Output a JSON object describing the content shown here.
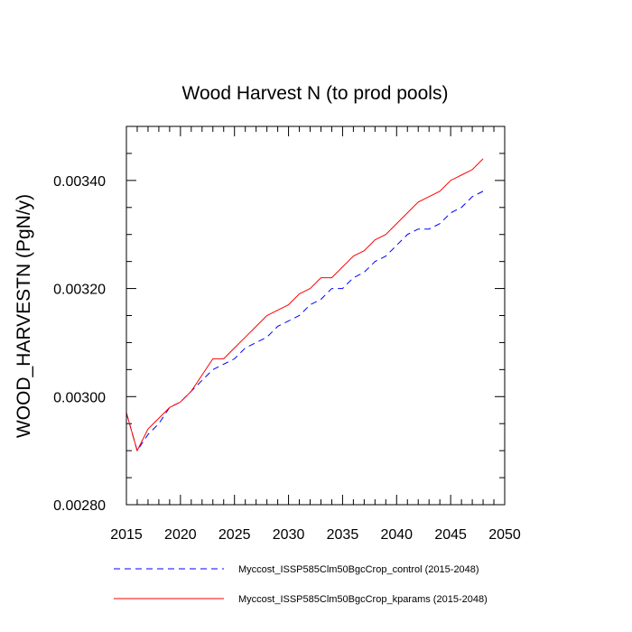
{
  "chart_data": {
    "type": "line",
    "title": "Wood Harvest N (to prod pools)",
    "xlabel": "",
    "ylabel": "WOOD_HARVESTN  (PgN/y)",
    "xlim": [
      2015,
      2050
    ],
    "ylim": [
      0.0028,
      0.0035
    ],
    "xticks": [
      2015,
      2020,
      2025,
      2030,
      2035,
      2040,
      2045,
      2050
    ],
    "xtick_labels": [
      "2015",
      "2020",
      "2025",
      "2030",
      "2035",
      "2040",
      "2045",
      "2050"
    ],
    "yticks": [
      0.0028,
      0.003,
      0.0032,
      0.0034
    ],
    "ytick_labels": [
      "0.00280",
      "0.00300",
      "0.00320",
      "0.00340"
    ],
    "grid": false,
    "legend_position": "bottom",
    "x": [
      2015,
      2016,
      2017,
      2018,
      2019,
      2020,
      2021,
      2022,
      2023,
      2024,
      2025,
      2026,
      2027,
      2028,
      2029,
      2030,
      2031,
      2032,
      2033,
      2034,
      2035,
      2036,
      2037,
      2038,
      2039,
      2040,
      2041,
      2042,
      2043,
      2044,
      2045,
      2046,
      2047,
      2048
    ],
    "series": [
      {
        "name": "Myccost_ISSP585Clm50BgcCrop_control (2015-2048)",
        "color": "#0000ff",
        "dash": "dashed",
        "values": [
          0.00297,
          0.0029,
          0.00293,
          0.00295,
          0.00298,
          0.00299,
          0.00301,
          0.00303,
          0.00305,
          0.00306,
          0.00307,
          0.00309,
          0.0031,
          0.00311,
          0.00313,
          0.00314,
          0.00315,
          0.00317,
          0.00318,
          0.0032,
          0.0032,
          0.00322,
          0.00323,
          0.00325,
          0.00326,
          0.00328,
          0.0033,
          0.00331,
          0.00331,
          0.00332,
          0.00334,
          0.00335,
          0.00337,
          0.00338
        ]
      },
      {
        "name": "Myccost_ISSP585Clm50BgcCrop_kparams (2015-2048)",
        "color": "#ff0000",
        "dash": "solid",
        "values": [
          0.00297,
          0.0029,
          0.00294,
          0.00296,
          0.00298,
          0.00299,
          0.00301,
          0.00304,
          0.00307,
          0.00307,
          0.00309,
          0.00311,
          0.00313,
          0.00315,
          0.00316,
          0.00317,
          0.00319,
          0.0032,
          0.00322,
          0.00322,
          0.00324,
          0.00326,
          0.00327,
          0.00329,
          0.0033,
          0.00332,
          0.00334,
          0.00336,
          0.00337,
          0.00338,
          0.0034,
          0.00341,
          0.00342,
          0.00344
        ]
      }
    ]
  }
}
